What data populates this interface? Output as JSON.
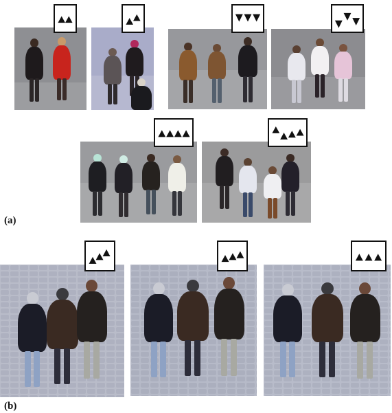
{
  "panel_labels": {
    "a": "(a)",
    "b": "(b)"
  },
  "icon": "triangle-formation-icon",
  "colors": {
    "glyph_fill": "#111111",
    "glyph_border": "#111111",
    "pavement": "#8f8f94",
    "cobblestone": "#b9bcc8"
  },
  "panel_a_groups": [
    {
      "people": 2,
      "formation": "side-by-side"
    },
    {
      "people": 2,
      "formation": "staggered"
    },
    {
      "people": 3,
      "formation": "inverted-row"
    },
    {
      "people": 3,
      "formation": "inverted-staggered"
    },
    {
      "people": 4,
      "formation": "row"
    },
    {
      "people": 4,
      "formation": "leader-plus-three"
    }
  ],
  "panel_b_frames": [
    {
      "people": 3,
      "formation": "staggered-diagonal"
    },
    {
      "people": 3,
      "formation": "slight-stagger"
    },
    {
      "people": 3,
      "formation": "row"
    }
  ]
}
